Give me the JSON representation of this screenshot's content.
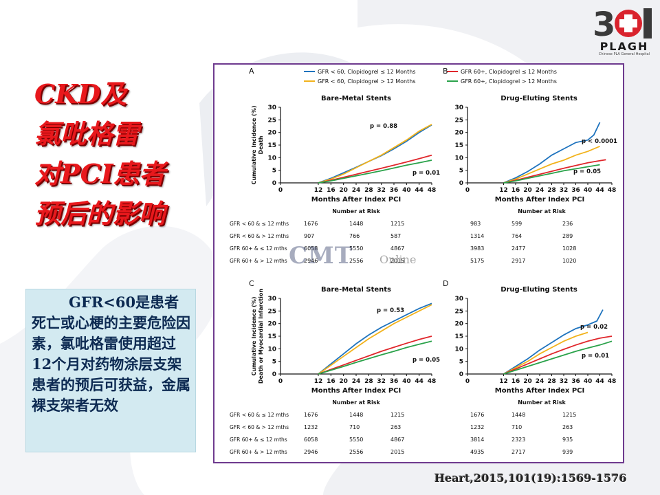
{
  "slide": {
    "title_lines": [
      "CKD及",
      "氯吡格雷",
      "对PCI患者",
      "预后的影响"
    ],
    "note": "GFR<60是患者死亡或心梗的主要危险因素，氯吡格雷使用超过12个月对药物涂层支架患者的预后可获益，金属裸支架者无效",
    "citation": "Heart,2015,101(19):1569-1576",
    "watermark": "CMT",
    "watermark_sub": "Online",
    "logo_number": "301",
    "logo_text": "PLAGH",
    "logo_sub": "Chinese PLA General Hospital"
  },
  "legend": {
    "blue": "GFR < 60, Clopidogrel ≤ 12 Months",
    "yellow": "GFR < 60, Clopidogrel > 12 Months",
    "red": "GFR 60+, Clopidogrel ≤ 12 Months",
    "green": "GFR 60+, Clopidogrel > 12 Months"
  },
  "colors": {
    "blue": "#1e73be",
    "yellow": "#f2b21b",
    "red": "#e0262b",
    "green": "#2aa24a"
  },
  "risk_title": "Number at Risk",
  "risk_row_labels": [
    "GFR < 60 & ≤ 12 mths",
    "GFR < 60 & > 12 mths",
    "GFR 60+ & ≤ 12 mths",
    "GFR 60+ & > 12 mths"
  ],
  "chart_data": [
    {
      "type": "line",
      "panel": "A",
      "title": "Bare-Metal Stents",
      "xlabel": "Months After Index PCI",
      "ylabel": "Cumulative Incidence (%) Death",
      "xlim": [
        0,
        48
      ],
      "ylim": [
        0,
        30
      ],
      "x_ticks": [
        0,
        12,
        16,
        20,
        24,
        28,
        32,
        36,
        40,
        44,
        48
      ],
      "y_ticks": [
        0,
        5,
        10,
        15,
        20,
        25,
        30
      ],
      "annotations": [
        "p = 0.88",
        "p = 0.01"
      ],
      "series": [
        {
          "name": "GFR < 60, Clopidogrel ≤ 12 Months",
          "color": "blue",
          "points": [
            [
              12,
              0
            ],
            [
              16,
              1.8
            ],
            [
              20,
              4
            ],
            [
              24,
              6.2
            ],
            [
              28,
              8.5
            ],
            [
              32,
              10.8
            ],
            [
              36,
              13.5
            ],
            [
              40,
              16.5
            ],
            [
              44,
              20
            ],
            [
              48,
              23
            ]
          ]
        },
        {
          "name": "GFR < 60, Clopidogrel > 12 Months",
          "color": "yellow",
          "points": [
            [
              12,
              0
            ],
            [
              16,
              1.5
            ],
            [
              20,
              3.5
            ],
            [
              24,
              6
            ],
            [
              28,
              8.5
            ],
            [
              32,
              11
            ],
            [
              36,
              14
            ],
            [
              40,
              17
            ],
            [
              44,
              20.5
            ],
            [
              48,
              23.2
            ]
          ]
        },
        {
          "name": "GFR 60+, Clopidogrel ≤ 12 Months",
          "color": "red",
          "points": [
            [
              12,
              0
            ],
            [
              16,
              1
            ],
            [
              20,
              2.2
            ],
            [
              24,
              3.4
            ],
            [
              28,
              4.6
            ],
            [
              32,
              5.8
            ],
            [
              36,
              7
            ],
            [
              40,
              8.3
            ],
            [
              44,
              9.6
            ],
            [
              48,
              11
            ]
          ]
        },
        {
          "name": "GFR 60+, Clopidogrel > 12 Months",
          "color": "green",
          "points": [
            [
              12,
              0
            ],
            [
              16,
              0.8
            ],
            [
              20,
              1.8
            ],
            [
              24,
              2.8
            ],
            [
              28,
              3.8
            ],
            [
              32,
              4.8
            ],
            [
              36,
              5.9
            ],
            [
              40,
              7
            ],
            [
              44,
              8
            ],
            [
              48,
              9
            ]
          ]
        }
      ],
      "risk_table": [
        [
          1676,
          1448,
          1215
        ],
        [
          907,
          766,
          587
        ],
        [
          6058,
          5550,
          4867
        ],
        [
          2946,
          2556,
          2015
        ]
      ]
    },
    {
      "type": "line",
      "panel": "B",
      "title": "Drug-Eluting Stents",
      "xlabel": "Months After Index PCI",
      "xlim": [
        0,
        48
      ],
      "ylim": [
        0,
        30
      ],
      "x_ticks": [
        0,
        12,
        16,
        20,
        24,
        28,
        32,
        36,
        40,
        44,
        48
      ],
      "y_ticks": [
        0,
        5,
        10,
        15,
        20,
        25,
        30
      ],
      "annotations": [
        "p < 0.0001",
        "p = 0.05"
      ],
      "series": [
        {
          "name": "GFR < 60, Clopidogrel ≤ 12 Months",
          "color": "blue",
          "points": [
            [
              12,
              0
            ],
            [
              16,
              2
            ],
            [
              20,
              4.5
            ],
            [
              24,
              7.5
            ],
            [
              28,
              11
            ],
            [
              32,
              13.5
            ],
            [
              36,
              16
            ],
            [
              40,
              17
            ],
            [
              42,
              19
            ],
            [
              44,
              24
            ]
          ]
        },
        {
          "name": "GFR < 60, Clopidogrel > 12 Months",
          "color": "yellow",
          "points": [
            [
              12,
              0
            ],
            [
              16,
              1.5
            ],
            [
              20,
              3.5
            ],
            [
              24,
              5.5
            ],
            [
              28,
              7.5
            ],
            [
              32,
              9
            ],
            [
              36,
              11
            ],
            [
              40,
              12.5
            ],
            [
              44,
              14.5
            ]
          ]
        },
        {
          "name": "GFR 60+, Clopidogrel ≤ 12 Months",
          "color": "red",
          "points": [
            [
              12,
              0
            ],
            [
              16,
              1
            ],
            [
              20,
              2.2
            ],
            [
              24,
              3.4
            ],
            [
              28,
              4.6
            ],
            [
              32,
              5.8
            ],
            [
              36,
              6.9
            ],
            [
              40,
              8
            ],
            [
              44,
              8.8
            ],
            [
              46,
              9.2
            ]
          ]
        },
        {
          "name": "GFR 60+, Clopidogrel > 12 Months",
          "color": "green",
          "points": [
            [
              12,
              0
            ],
            [
              16,
              0.8
            ],
            [
              20,
              1.8
            ],
            [
              24,
              2.8
            ],
            [
              28,
              3.8
            ],
            [
              32,
              4.8
            ],
            [
              36,
              5.6
            ],
            [
              40,
              6.4
            ],
            [
              44,
              7.2
            ]
          ]
        }
      ],
      "risk_table": [
        [
          983,
          599,
          236
        ],
        [
          1314,
          764,
          289
        ],
        [
          3983,
          2477,
          1028
        ],
        [
          5175,
          2917,
          1020
        ]
      ]
    },
    {
      "type": "line",
      "panel": "C",
      "title": "Bare-Metal Stents",
      "xlabel": "Months After Index PCI",
      "ylabel": "Cumulative Incidence (%) Death or Myocardial Infarction",
      "xlim": [
        0,
        48
      ],
      "ylim": [
        0,
        30
      ],
      "x_ticks": [
        0,
        12,
        16,
        20,
        24,
        28,
        32,
        36,
        40,
        44,
        48
      ],
      "y_ticks": [
        0,
        5,
        10,
        15,
        20,
        25,
        30
      ],
      "annotations": [
        "p = 0.53",
        "p = 0.05"
      ],
      "series": [
        {
          "name": "GFR < 60, Clopidogrel ≤ 12 Months",
          "color": "blue",
          "points": [
            [
              12,
              0
            ],
            [
              16,
              4
            ],
            [
              20,
              8
            ],
            [
              24,
              12
            ],
            [
              28,
              15.5
            ],
            [
              32,
              18.5
            ],
            [
              36,
              21
            ],
            [
              40,
              23.5
            ],
            [
              44,
              26
            ],
            [
              48,
              28
            ]
          ]
        },
        {
          "name": "GFR < 60, Clopidogrel > 12 Months",
          "color": "yellow",
          "points": [
            [
              12,
              0
            ],
            [
              16,
              3.5
            ],
            [
              20,
              7
            ],
            [
              24,
              10.5
            ],
            [
              28,
              14
            ],
            [
              32,
              17
            ],
            [
              36,
              20
            ],
            [
              40,
              22.5
            ],
            [
              44,
              25
            ],
            [
              48,
              27.5
            ]
          ]
        },
        {
          "name": "GFR 60+, Clopidogrel ≤ 12 Months",
          "color": "red",
          "points": [
            [
              12,
              0
            ],
            [
              16,
              1.8
            ],
            [
              20,
              3.6
            ],
            [
              24,
              5.4
            ],
            [
              28,
              7.2
            ],
            [
              32,
              9
            ],
            [
              36,
              10.6
            ],
            [
              40,
              12.2
            ],
            [
              44,
              13.7
            ],
            [
              48,
              15
            ]
          ]
        },
        {
          "name": "GFR 60+, Clopidogrel > 12 Months",
          "color": "green",
          "points": [
            [
              12,
              0
            ],
            [
              16,
              1.5
            ],
            [
              20,
              3
            ],
            [
              24,
              4.6
            ],
            [
              28,
              6.1
            ],
            [
              32,
              7.6
            ],
            [
              36,
              9
            ],
            [
              40,
              10.5
            ],
            [
              44,
              11.8
            ],
            [
              48,
              13
            ]
          ]
        }
      ],
      "risk_table": [
        [
          1676,
          1448,
          1215
        ],
        [
          1232,
          710,
          263
        ],
        [
          6058,
          5550,
          4867
        ],
        [
          2946,
          2556,
          2015
        ]
      ]
    },
    {
      "type": "line",
      "panel": "D",
      "title": "Drug-Eluting Stents",
      "xlabel": "Months After Index PCI",
      "xlim": [
        0,
        48
      ],
      "ylim": [
        0,
        30
      ],
      "x_ticks": [
        0,
        12,
        16,
        20,
        24,
        28,
        32,
        36,
        40,
        44,
        48
      ],
      "y_ticks": [
        0,
        5,
        10,
        15,
        20,
        25,
        30
      ],
      "annotations": [
        "p = 0.02",
        "p = 0.01"
      ],
      "series": [
        {
          "name": "GFR < 60, Clopidogrel ≤ 12 Months",
          "color": "blue",
          "points": [
            [
              12,
              0
            ],
            [
              16,
              3
            ],
            [
              20,
              6
            ],
            [
              24,
              9.5
            ],
            [
              28,
              12.5
            ],
            [
              32,
              15.5
            ],
            [
              36,
              18
            ],
            [
              40,
              19.5
            ],
            [
              43,
              21
            ],
            [
              45,
              25.5
            ]
          ]
        },
        {
          "name": "GFR < 60, Clopidogrel > 12 Months",
          "color": "yellow",
          "points": [
            [
              12,
              0
            ],
            [
              16,
              2.5
            ],
            [
              20,
              5
            ],
            [
              24,
              8
            ],
            [
              28,
              10.5
            ],
            [
              32,
              13
            ],
            [
              36,
              15
            ],
            [
              40,
              16.5
            ]
          ]
        },
        {
          "name": "GFR 60+, Clopidogrel ≤ 12 Months",
          "color": "red",
          "points": [
            [
              12,
              0
            ],
            [
              16,
              2
            ],
            [
              20,
              4
            ],
            [
              24,
              6
            ],
            [
              28,
              8
            ],
            [
              32,
              9.8
            ],
            [
              36,
              11.5
            ],
            [
              40,
              13
            ],
            [
              44,
              14.2
            ],
            [
              48,
              15
            ]
          ]
        },
        {
          "name": "GFR 60+, Clopidogrel > 12 Months",
          "color": "green",
          "points": [
            [
              12,
              0
            ],
            [
              16,
              1.5
            ],
            [
              20,
              3
            ],
            [
              24,
              4.5
            ],
            [
              28,
              6
            ],
            [
              32,
              7.5
            ],
            [
              36,
              9
            ],
            [
              40,
              10.3
            ],
            [
              44,
              11.5
            ],
            [
              48,
              13
            ]
          ]
        }
      ],
      "risk_table": [
        [
          1676,
          1448,
          1215
        ],
        [
          1232,
          710,
          263
        ],
        [
          3814,
          2323,
          935
        ],
        [
          4935,
          2717,
          939
        ]
      ]
    }
  ]
}
